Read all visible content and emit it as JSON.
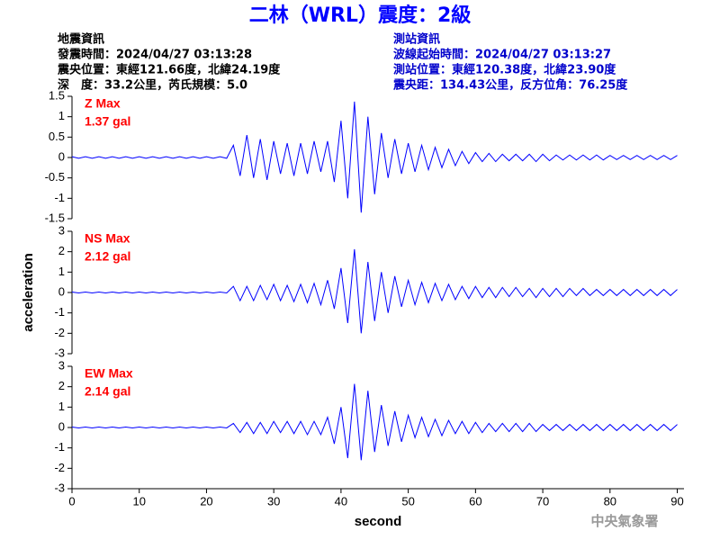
{
  "header": {
    "title": "二林（WRL）震度：2級",
    "left": [
      "地震資訊",
      "發震時間：2024/04/27 03:13:28",
      "震央位置：東經121.66度，北緯24.19度",
      "深　度：33.2公里，芮氏規模：5.0"
    ],
    "right": [
      "測站資訊",
      "波線起始時間：2024/04/27 03:13:27",
      "測站位置：東經120.38度，北緯23.90度",
      "震央距：134.43公里，反方位角：76.25度"
    ],
    "footer": "中央氣象署"
  },
  "chart_data": [
    {
      "type": "line",
      "color": "#0000ff",
      "annotations": [
        "Z Max",
        "1.37 gal"
      ],
      "xlim": [
        0,
        91
      ],
      "ylim": [
        -1.5,
        1.5
      ],
      "yticks": [
        1.5,
        1,
        0.5,
        0,
        -0.5,
        -1,
        -1.5
      ],
      "x": [
        0,
        1,
        2,
        3,
        4,
        5,
        6,
        7,
        8,
        9,
        10,
        11,
        12,
        13,
        14,
        15,
        16,
        17,
        18,
        19,
        20,
        21,
        22,
        23,
        24,
        25,
        26,
        27,
        28,
        29,
        30,
        31,
        32,
        33,
        34,
        35,
        36,
        37,
        38,
        39,
        40,
        41,
        42,
        43,
        44,
        45,
        46,
        47,
        48,
        49,
        50,
        51,
        52,
        53,
        54,
        55,
        56,
        57,
        58,
        59,
        60,
        61,
        62,
        63,
        64,
        65,
        66,
        67,
        68,
        69,
        70,
        71,
        72,
        73,
        74,
        75,
        76,
        77,
        78,
        79,
        80,
        81,
        82,
        83,
        84,
        85,
        86,
        87,
        88,
        89,
        90
      ],
      "values": [
        0.02,
        -0.02,
        0.02,
        -0.02,
        0.02,
        -0.02,
        0.02,
        -0.02,
        0.02,
        -0.02,
        0.02,
        -0.02,
        0.02,
        -0.02,
        0.02,
        -0.02,
        0.02,
        -0.02,
        0.02,
        -0.02,
        0.02,
        -0.02,
        0.02,
        -0.02,
        0.3,
        -0.45,
        0.55,
        -0.5,
        0.45,
        -0.55,
        0.4,
        -0.4,
        0.35,
        -0.45,
        0.35,
        -0.4,
        0.4,
        -0.35,
        0.4,
        -0.6,
        0.9,
        -1.0,
        1.37,
        -1.35,
        1.0,
        -0.9,
        0.6,
        -0.5,
        0.45,
        -0.4,
        0.35,
        -0.35,
        0.3,
        -0.3,
        0.25,
        -0.25,
        0.2,
        -0.2,
        0.15,
        -0.15,
        0.12,
        -0.1,
        0.1,
        -0.1,
        0.08,
        -0.08,
        0.08,
        -0.08,
        0.08,
        -0.1,
        0.08,
        -0.08,
        0.06,
        -0.06,
        0.06,
        -0.06,
        0.06,
        -0.06,
        0.06,
        -0.06,
        0.05,
        -0.05,
        0.05,
        -0.05,
        0.05,
        -0.05,
        0.05,
        -0.05,
        0.05,
        -0.05,
        0.05
      ]
    },
    {
      "type": "line",
      "color": "#0000ff",
      "annotations": [
        "NS Max",
        "2.12 gal"
      ],
      "ylabel": "acceleration",
      "xlim": [
        0,
        91
      ],
      "ylim": [
        -3,
        3
      ],
      "yticks": [
        3,
        2,
        1,
        0,
        -1,
        -2,
        -3
      ],
      "x": [
        0,
        1,
        2,
        3,
        4,
        5,
        6,
        7,
        8,
        9,
        10,
        11,
        12,
        13,
        14,
        15,
        16,
        17,
        18,
        19,
        20,
        21,
        22,
        23,
        24,
        25,
        26,
        27,
        28,
        29,
        30,
        31,
        32,
        33,
        34,
        35,
        36,
        37,
        38,
        39,
        40,
        41,
        42,
        43,
        44,
        45,
        46,
        47,
        48,
        49,
        50,
        51,
        52,
        53,
        54,
        55,
        56,
        57,
        58,
        59,
        60,
        61,
        62,
        63,
        64,
        65,
        66,
        67,
        68,
        69,
        70,
        71,
        72,
        73,
        74,
        75,
        76,
        77,
        78,
        79,
        80,
        81,
        82,
        83,
        84,
        85,
        86,
        87,
        88,
        89,
        90
      ],
      "values": [
        0.02,
        -0.02,
        0.02,
        -0.02,
        0.02,
        -0.02,
        0.02,
        -0.02,
        0.02,
        -0.02,
        0.02,
        -0.02,
        0.02,
        -0.02,
        0.02,
        -0.02,
        0.02,
        -0.02,
        0.02,
        -0.02,
        0.02,
        -0.02,
        0.02,
        -0.02,
        0.3,
        -0.4,
        0.3,
        -0.4,
        0.35,
        -0.35,
        0.4,
        -0.4,
        0.35,
        -0.45,
        0.4,
        -0.5,
        0.45,
        -0.6,
        0.6,
        -0.8,
        1.2,
        -1.5,
        2.12,
        -2.0,
        1.5,
        -1.4,
        1.0,
        -1.0,
        0.8,
        -0.7,
        0.6,
        -0.6,
        0.5,
        -0.5,
        0.45,
        -0.4,
        0.4,
        -0.35,
        0.3,
        -0.3,
        0.3,
        -0.25,
        0.25,
        -0.25,
        0.25,
        -0.2,
        0.25,
        -0.2,
        0.2,
        -0.25,
        0.2,
        -0.2,
        0.2,
        -0.2,
        0.2,
        -0.15,
        0.2,
        -0.15,
        0.15,
        -0.15,
        0.15,
        -0.15,
        0.15,
        -0.15,
        0.15,
        -0.15,
        0.15,
        -0.15,
        0.15,
        -0.15,
        0.15
      ]
    },
    {
      "type": "line",
      "color": "#0000ff",
      "annotations": [
        "EW Max",
        "2.14 gal"
      ],
      "xlabel": "second",
      "xlim": [
        0,
        91
      ],
      "xticks": [
        0,
        10,
        20,
        30,
        40,
        50,
        60,
        70,
        80,
        90
      ],
      "ylim": [
        -3,
        3
      ],
      "yticks": [
        3,
        2,
        1,
        0,
        -1,
        -2,
        -3
      ],
      "x": [
        0,
        1,
        2,
        3,
        4,
        5,
        6,
        7,
        8,
        9,
        10,
        11,
        12,
        13,
        14,
        15,
        16,
        17,
        18,
        19,
        20,
        21,
        22,
        23,
        24,
        25,
        26,
        27,
        28,
        29,
        30,
        31,
        32,
        33,
        34,
        35,
        36,
        37,
        38,
        39,
        40,
        41,
        42,
        43,
        44,
        45,
        46,
        47,
        48,
        49,
        50,
        51,
        52,
        53,
        54,
        55,
        56,
        57,
        58,
        59,
        60,
        61,
        62,
        63,
        64,
        65,
        66,
        67,
        68,
        69,
        70,
        71,
        72,
        73,
        74,
        75,
        76,
        77,
        78,
        79,
        80,
        81,
        82,
        83,
        84,
        85,
        86,
        87,
        88,
        89,
        90
      ],
      "values": [
        0.02,
        -0.02,
        0.02,
        -0.02,
        0.02,
        -0.02,
        0.02,
        -0.02,
        0.02,
        -0.02,
        0.02,
        -0.02,
        0.02,
        -0.02,
        0.02,
        -0.02,
        0.02,
        -0.02,
        0.02,
        -0.02,
        0.02,
        -0.02,
        0.02,
        -0.02,
        0.2,
        -0.25,
        0.25,
        -0.3,
        0.25,
        -0.3,
        0.3,
        -0.25,
        0.3,
        -0.3,
        0.3,
        -0.35,
        0.3,
        -0.35,
        0.5,
        -0.8,
        1.0,
        -1.5,
        2.14,
        -1.6,
        1.8,
        -1.2,
        1.1,
        -0.9,
        0.8,
        -0.7,
        0.6,
        -0.5,
        0.5,
        -0.45,
        0.4,
        -0.4,
        0.35,
        -0.3,
        0.3,
        -0.3,
        0.25,
        -0.25,
        0.2,
        -0.2,
        0.2,
        -0.2,
        0.2,
        -0.2,
        0.2,
        -0.2,
        0.15,
        -0.15,
        0.15,
        -0.15,
        0.15,
        -0.15,
        0.15,
        -0.15,
        0.15,
        -0.15,
        0.15,
        -0.15,
        0.15,
        -0.15,
        0.15,
        -0.15,
        0.15,
        -0.15,
        0.15,
        -0.15,
        0.15
      ]
    }
  ]
}
